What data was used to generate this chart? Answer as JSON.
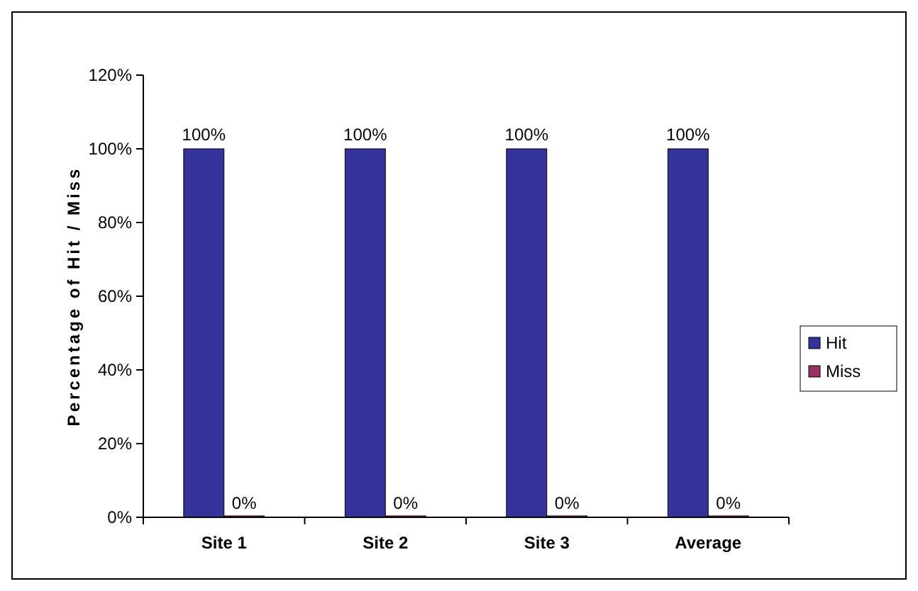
{
  "chart_data": {
    "type": "bar",
    "ylabel": "Percentage of Hit / Miss",
    "categories": [
      "Site 1",
      "Site 2",
      "Site 3",
      "Average"
    ],
    "series": [
      {
        "name": "Hit",
        "color": "#333399",
        "values": [
          100,
          100,
          100,
          100
        ],
        "value_labels": [
          "100%",
          "100%",
          "100%",
          "100%"
        ]
      },
      {
        "name": "Miss",
        "color": "#993366",
        "values": [
          0,
          0,
          0,
          0
        ],
        "value_labels": [
          "0%",
          "0%",
          "0%",
          "0%"
        ]
      }
    ],
    "ylim": [
      0,
      120
    ],
    "yticks": [
      {
        "value": 0,
        "label": "0%"
      },
      {
        "value": 20,
        "label": "20%"
      },
      {
        "value": 40,
        "label": "40%"
      },
      {
        "value": 60,
        "label": "60%"
      },
      {
        "value": 80,
        "label": "80%"
      },
      {
        "value": 100,
        "label": "100%"
      },
      {
        "value": 120,
        "label": "120%"
      }
    ],
    "grid": false,
    "legend": "right"
  }
}
